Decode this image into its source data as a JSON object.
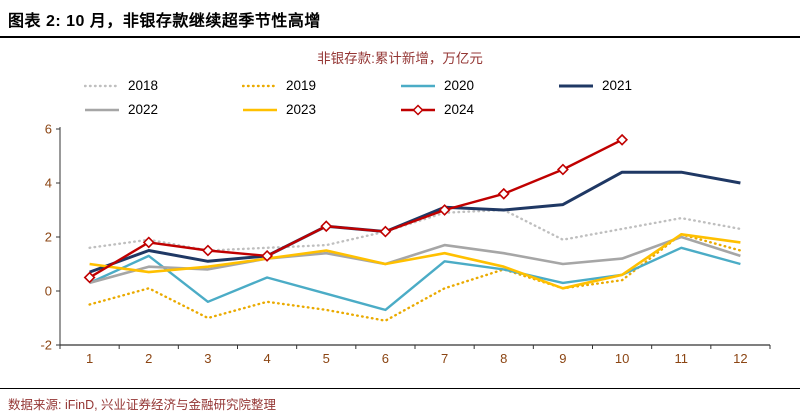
{
  "header": {
    "title": "图表 2: 10 月，非银存款继续超季节性高增"
  },
  "chart": {
    "subtitle": "非银存款:累计新增，万亿元"
  },
  "chart_data": {
    "type": "line",
    "title": "非银存款:累计新增，万亿元",
    "x": [
      1,
      2,
      3,
      4,
      5,
      6,
      7,
      8,
      9,
      10,
      11,
      12
    ],
    "xlim": [
      0.5,
      12.5
    ],
    "ylim": [
      -2,
      6
    ],
    "yticks": [
      -2,
      0,
      2,
      4,
      6
    ],
    "grid": false,
    "legend_position": "top",
    "series": [
      {
        "name": "2018",
        "color": "#BFBFBF",
        "style": "dotted",
        "width": 2.4,
        "marker": "none",
        "values": [
          1.6,
          1.9,
          1.5,
          1.6,
          1.7,
          2.2,
          2.9,
          3.0,
          1.9,
          2.3,
          2.7,
          2.3
        ]
      },
      {
        "name": "2019",
        "color": "#EAAA00",
        "style": "dotted",
        "width": 2.4,
        "marker": "none",
        "values": [
          -0.5,
          0.1,
          -1.0,
          -0.4,
          -0.7,
          -1.1,
          0.1,
          0.8,
          0.1,
          0.4,
          2.1,
          1.5
        ]
      },
      {
        "name": "2020",
        "color": "#4BACC6",
        "style": "solid",
        "width": 2.4,
        "marker": "none",
        "values": [
          0.3,
          1.3,
          -0.4,
          0.5,
          -0.1,
          -0.7,
          1.1,
          0.8,
          0.3,
          0.6,
          1.6,
          1.0
        ]
      },
      {
        "name": "2021",
        "color": "#1F3864",
        "style": "solid",
        "width": 3,
        "marker": "none",
        "values": [
          0.7,
          1.5,
          1.1,
          1.3,
          2.4,
          2.2,
          3.1,
          3.0,
          3.2,
          4.4,
          4.4,
          4.0
        ]
      },
      {
        "name": "2022",
        "color": "#A6A6A6",
        "style": "solid",
        "width": 2.6,
        "marker": "none",
        "values": [
          0.3,
          0.9,
          0.8,
          1.2,
          1.4,
          1.0,
          1.7,
          1.4,
          1.0,
          1.2,
          2.0,
          1.3
        ]
      },
      {
        "name": "2023",
        "color": "#FFC000",
        "style": "solid",
        "width": 2.6,
        "marker": "none",
        "values": [
          1.0,
          0.7,
          0.9,
          1.2,
          1.5,
          1.0,
          1.4,
          0.9,
          0.1,
          0.6,
          2.1,
          1.8
        ]
      },
      {
        "name": "2024",
        "color": "#C00000",
        "style": "solid",
        "width": 2.4,
        "marker": "diamond",
        "values": [
          0.5,
          1.8,
          1.5,
          1.3,
          2.4,
          2.2,
          3.0,
          3.6,
          4.5,
          5.6,
          null,
          null
        ]
      }
    ]
  },
  "footer": {
    "source": "数据来源: iFinD, 兴业证券经济与金融研究院整理"
  },
  "colors": {
    "accent_red": "#C00000",
    "axis_line": "#333333",
    "axis_text": "#8B4513",
    "warm_text": "#943634",
    "rule": "#000000"
  }
}
